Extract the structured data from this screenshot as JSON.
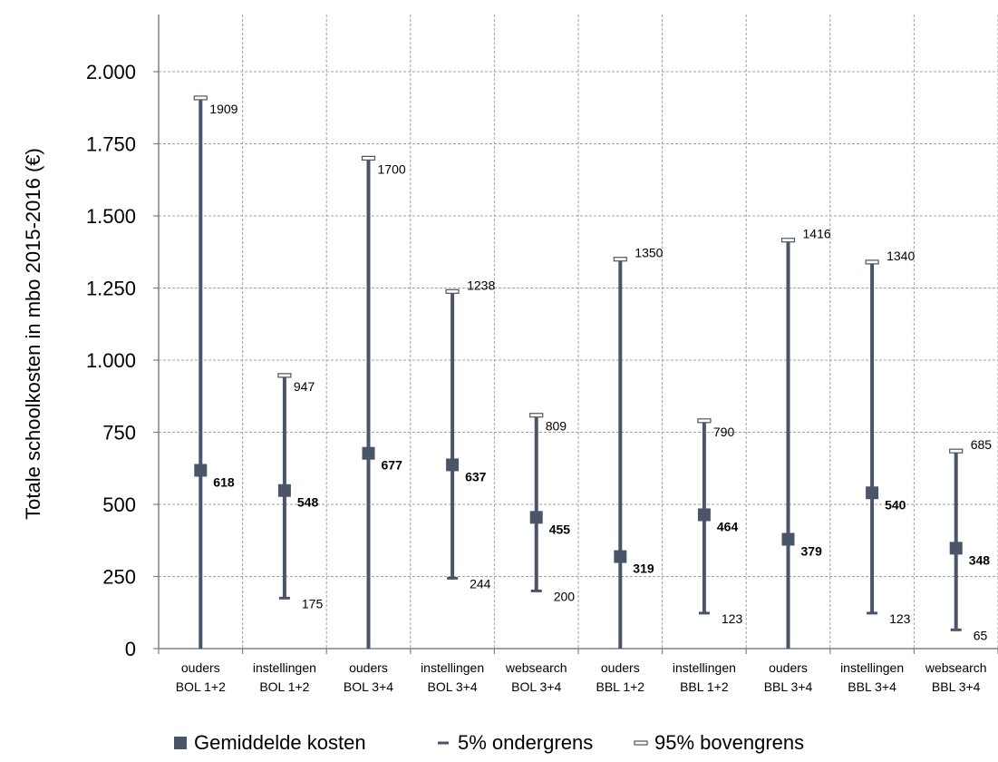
{
  "chart_data": {
    "type": "errorbar",
    "ylabel": "Totale schoolkosten in mbo 2015-2016 (€)",
    "ylim": [
      0,
      2000
    ],
    "yticks": [
      0,
      250,
      500,
      750,
      1000,
      1250,
      1500,
      1750,
      2000
    ],
    "ytick_labels": [
      "0",
      "250",
      "500",
      "750",
      "1.000",
      "1.250",
      "1.500",
      "1.750",
      "2.000"
    ],
    "grid": true,
    "legend_position": "bottom",
    "colors": {
      "bar": "#4a5568",
      "grid": "#a0a0a0",
      "axis": "#808080"
    },
    "categories": [
      {
        "line1": "ouders",
        "line2": "BOL 1+2"
      },
      {
        "line1": "instellingen",
        "line2": "BOL 1+2"
      },
      {
        "line1": "ouders",
        "line2": "BOL 3+4"
      },
      {
        "line1": "instellingen",
        "line2": "BOL 3+4"
      },
      {
        "line1": "websearch",
        "line2": "BOL 3+4"
      },
      {
        "line1": "ouders",
        "line2": "BBL 1+2"
      },
      {
        "line1": "instellingen",
        "line2": "BBL 1+2"
      },
      {
        "line1": "ouders",
        "line2": "BBL 3+4"
      },
      {
        "line1": "instellingen",
        "line2": "BBL 3+4"
      },
      {
        "line1": "websearch",
        "line2": "BBL 3+4"
      }
    ],
    "series": [
      {
        "name": "Gemiddelde kosten",
        "values": [
          618,
          548,
          677,
          637,
          455,
          319,
          464,
          379,
          540,
          348
        ]
      },
      {
        "name": "5% ondergrens",
        "values": [
          0,
          175,
          0,
          244,
          200,
          0,
          123,
          0,
          123,
          65
        ]
      },
      {
        "name": "95% bovengrens",
        "values": [
          1909,
          947,
          1700,
          1238,
          809,
          1350,
          790,
          1416,
          1340,
          685
        ]
      }
    ],
    "low_labels": [
      "",
      "175",
      "",
      "244",
      "200",
      "",
      "123",
      "",
      "123",
      "65"
    ],
    "high_labels": [
      "1909",
      "947",
      "1700",
      "1238",
      "809",
      "1350",
      "790",
      "1416",
      "1340",
      "685"
    ],
    "mean_labels": [
      "618",
      "548",
      "677",
      "637",
      "455",
      "319",
      "464",
      "379",
      "540",
      "348"
    ],
    "legend": [
      {
        "label": "Gemiddelde kosten",
        "marker": "square"
      },
      {
        "label": "5% ondergrens",
        "marker": "dash"
      },
      {
        "label": "95% bovengrens",
        "marker": "open-dash"
      }
    ]
  }
}
